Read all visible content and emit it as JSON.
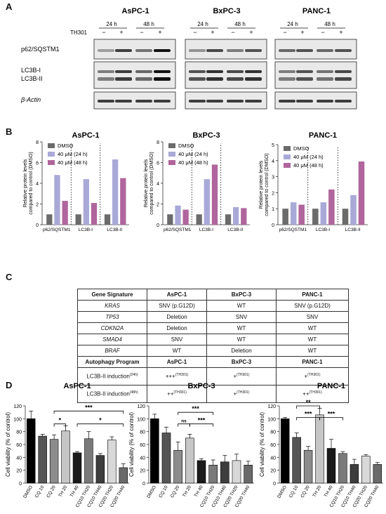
{
  "panels": {
    "A": "A",
    "B": "B",
    "C": "C",
    "D": "D"
  },
  "western_blot": {
    "cell_lines": [
      "AsPC-1",
      "BxPC-3",
      "PANC-1"
    ],
    "timepoints": [
      "24 h",
      "48 h"
    ],
    "treatment_label": "TH301",
    "lane_signs": [
      "−",
      "+",
      "−",
      "+"
    ],
    "proteins": [
      "p62/SQSTM1",
      "LC3B-I",
      "LC3B-II",
      "β-Actin"
    ]
  },
  "chart_data": [
    {
      "type": "bar",
      "title": "AsPC-1",
      "ylabel": "Relative protein levels compared to control (DMSO)",
      "categories": [
        "p62/SQSTM1",
        "LC3B-I",
        "LC3B-II"
      ],
      "ylim": [
        0,
        8
      ],
      "yticks": [
        0,
        2,
        4,
        6,
        8
      ],
      "series": [
        {
          "name": "DMSO",
          "values": [
            1.0,
            1.0,
            1.0
          ]
        },
        {
          "name": "40 μM (24 h)",
          "values": [
            4.8,
            4.4,
            6.3
          ]
        },
        {
          "name": "40 μM (48 h)",
          "values": [
            2.3,
            2.1,
            4.5
          ]
        }
      ],
      "legend_position": "top-left",
      "colors": [
        "#6b6b6b",
        "#a9a9d8",
        "#b0659c"
      ]
    },
    {
      "type": "bar",
      "title": "BxPC-3",
      "ylabel": "Relative protein levels compared to control (DMSO)",
      "categories": [
        "p62/SQSTM1",
        "LC3B-I",
        "LC3B-II"
      ],
      "ylim": [
        0,
        8
      ],
      "yticks": [
        0,
        2,
        4,
        6,
        8
      ],
      "series": [
        {
          "name": "DMSO",
          "values": [
            1.0,
            1.0,
            1.0
          ]
        },
        {
          "name": "40 μM (24 h)",
          "values": [
            1.85,
            4.4,
            1.7
          ]
        },
        {
          "name": "40 μM (48 h)",
          "values": [
            1.45,
            5.8,
            1.6
          ]
        }
      ],
      "legend_position": "top-left",
      "colors": [
        "#6b6b6b",
        "#a9a9d8",
        "#b0659c"
      ]
    },
    {
      "type": "bar",
      "title": "PANC-1",
      "ylabel": "Relative protein levels compared to control (DMSO)",
      "categories": [
        "p62/SQSTM1",
        "LC3B-I",
        "LC3B-II"
      ],
      "ylim": [
        0,
        5
      ],
      "yticks": [
        0,
        1,
        2,
        3,
        4,
        5
      ],
      "series": [
        {
          "name": "DMSO",
          "values": [
            1.0,
            1.0,
            1.0
          ]
        },
        {
          "name": "40 μM (24 h)",
          "values": [
            1.4,
            1.4,
            1.85
          ]
        },
        {
          "name": "40 μM (48 h)",
          "values": [
            1.25,
            2.2,
            3.95
          ]
        }
      ],
      "legend_position": "top-left",
      "colors": [
        "#6b6b6b",
        "#a9a9d8",
        "#b0659c"
      ]
    },
    {
      "type": "bar",
      "title": "AsPC-1",
      "ylabel": "Cell viability (% of control)",
      "ylim": [
        0,
        120
      ],
      "yticks": [
        0,
        20,
        40,
        60,
        80,
        100,
        120
      ],
      "categories": [
        "DMSO",
        "CQ 10",
        "CQ 20",
        "TH 20",
        "TH 40",
        "CQ10 TH20",
        "CQ10 TH40",
        "CQ20 TH20",
        "CQ20 TH40"
      ],
      "values": [
        100,
        73,
        68,
        81,
        47,
        69,
        43,
        67,
        24
      ],
      "errors": [
        12,
        3,
        7,
        8,
        2,
        11,
        3,
        5,
        6
      ],
      "brackets": [
        {
          "from": "CQ 20",
          "to": "CQ20 TH40",
          "label": "***"
        },
        {
          "from": "CQ 20",
          "to": "TH 20",
          "label": "*"
        },
        {
          "from": "TH 40",
          "to": "CQ20 TH40",
          "label": "*"
        }
      ]
    },
    {
      "type": "bar",
      "title": "BxPC-3",
      "ylabel": "Cell viability (% of control)",
      "ylim": [
        0,
        120
      ],
      "yticks": [
        0,
        20,
        40,
        60,
        80,
        100,
        120
      ],
      "categories": [
        "DMSO",
        "CQ 10",
        "CQ 20",
        "TH 20",
        "TH 40",
        "CQ10 TH20",
        "CQ10 TH40",
        "CQ20 TH20",
        "CQ20 TH40"
      ],
      "values": [
        100,
        78,
        51,
        70,
        35,
        28,
        33,
        35,
        28
      ],
      "errors": [
        7,
        9,
        13,
        6,
        3,
        8,
        10,
        10,
        6
      ],
      "brackets": [
        {
          "from": "CQ 20",
          "to": "CQ10 TH20",
          "label": "***"
        },
        {
          "from": "CQ 20",
          "to": "TH 20",
          "label": "ns"
        },
        {
          "from": "TH 20",
          "to": "CQ10 TH20",
          "label": "***"
        }
      ]
    },
    {
      "type": "bar",
      "title": "PANC-1",
      "ylabel": "Cell viability (% of control)",
      "ylim": [
        0,
        120
      ],
      "yticks": [
        0,
        20,
        40,
        60,
        80,
        100,
        120
      ],
      "categories": [
        "DMSO",
        "CQ 10",
        "CQ 20",
        "TH 20",
        "TH 40",
        "CQ10 TH20",
        "CQ10 TH40",
        "CQ20 TH20",
        "CQ20 TH40"
      ],
      "values": [
        100,
        71,
        51,
        106,
        54,
        46,
        29,
        42,
        29
      ],
      "errors": [
        2,
        7,
        6,
        10,
        14,
        3,
        8,
        2,
        3
      ],
      "brackets": [
        {
          "from": "CQ 10",
          "to": "TH 20",
          "label": "**"
        },
        {
          "from": "CQ 10",
          "to": "TH 20",
          "label": "***"
        },
        {
          "from": "TH 20",
          "to": "CQ10 TH20",
          "label": "***"
        }
      ]
    }
  ],
  "gene_table": {
    "header": [
      "Gene Signature",
      "AsPC-1",
      "BxPC-3",
      "PANC-1"
    ],
    "rows": [
      [
        "KRAS",
        "SNV (p.G12D)",
        "WT",
        "SNV (p.G12D)"
      ],
      [
        "TP53",
        "Deletion",
        "SNV",
        "SNV"
      ],
      [
        "CDKN2A",
        "Deletion",
        "WT",
        "WT"
      ],
      [
        "SMAD4",
        "SNV",
        "WT",
        "WT"
      ],
      [
        "BRAF",
        "WT",
        "Deletion",
        "WT"
      ]
    ],
    "program_header": [
      "Autophagy Program",
      "AsPC-1",
      "BxPC-3",
      "PANC-1"
    ],
    "induction_rows": [
      {
        "label": "LC3B-II induction",
        "time": "(24h)",
        "values": [
          "+++",
          "+",
          "+"
        ]
      },
      {
        "label": "LC3B-II induction",
        "time": "(48h)",
        "values": [
          "++",
          "+",
          "++"
        ]
      }
    ],
    "compound_sup": "(TH301)"
  }
}
